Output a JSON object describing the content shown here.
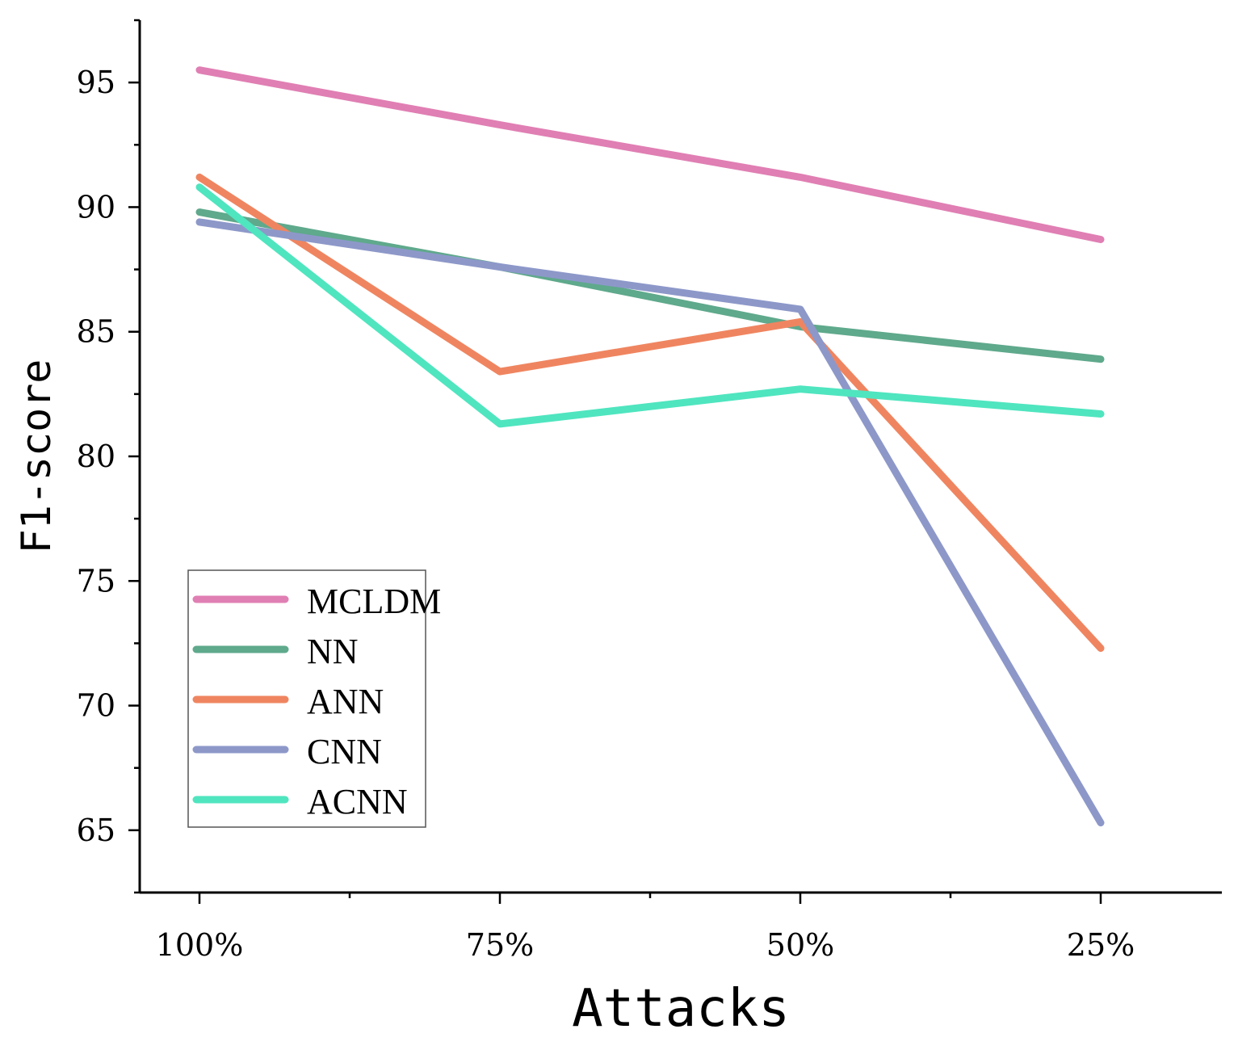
{
  "chart_data": {
    "type": "line",
    "title": "",
    "xlabel": "Attacks",
    "ylabel": "F1-score",
    "categories": [
      "100%",
      "75%",
      "50%",
      "25%"
    ],
    "ylim": [
      62.5,
      97.5
    ],
    "yticks": [
      65,
      70,
      75,
      80,
      85,
      90,
      95
    ],
    "grid": false,
    "legend_position": "bottom-left",
    "series": [
      {
        "name": "MCLDM",
        "color": "#e07fb3",
        "values": [
          95.5,
          93.3,
          91.2,
          88.7
        ]
      },
      {
        "name": "NN",
        "color": "#5fa98c",
        "values": [
          89.8,
          87.6,
          85.2,
          83.9
        ]
      },
      {
        "name": "ANN",
        "color": "#ef8560",
        "values": [
          91.2,
          83.4,
          85.4,
          72.3
        ]
      },
      {
        "name": "CNN",
        "color": "#8d98c9",
        "values": [
          89.4,
          87.6,
          85.9,
          65.3
        ]
      },
      {
        "name": "ACNN",
        "color": "#4fe5bf",
        "values": [
          90.8,
          81.3,
          82.7,
          81.7
        ]
      }
    ]
  }
}
